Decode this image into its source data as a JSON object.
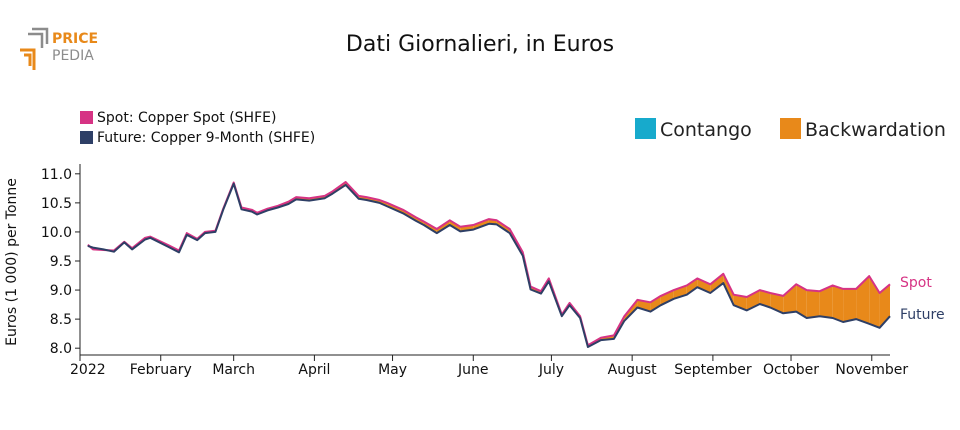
{
  "logo": {
    "line1": "PRICE",
    "line2": "PEDIA",
    "color_orange": "#e8891a",
    "color_gray": "#8c8c8c"
  },
  "title": "Dati Giornalieri, in Euros",
  "legend": {
    "spot": {
      "label": "Spot: Copper Spot (SHFE)",
      "color": "#d63384"
    },
    "future": {
      "label": "Future: Copper 9-Month (SHFE)",
      "color": "#2e3f66"
    },
    "contango": {
      "label": "Contango",
      "color": "#17aacc"
    },
    "backwardation": {
      "label": "Backwardation",
      "color": "#e8891a"
    }
  },
  "chart_data": {
    "type": "area",
    "title": "Dati Giornalieri, in Euros",
    "ylabel": "Euros (1 000) per Tonne",
    "xlabel": "",
    "ylim": [
      7.9,
      11.1
    ],
    "yticks": [
      8.0,
      8.5,
      9.0,
      9.5,
      10.0,
      10.5,
      11.0
    ],
    "ytick_labels": [
      "8.0",
      "8.5",
      "9.0",
      "9.5",
      "10.0",
      "10.5",
      "11.0"
    ],
    "xlim": [
      "2022-01-01",
      "2022-11-08"
    ],
    "xticks": [
      {
        "date": "2022-01-01",
        "label": "2022"
      },
      {
        "date": "2022-02-01",
        "label": "February"
      },
      {
        "date": "2022-03-01",
        "label": "March"
      },
      {
        "date": "2022-04-01",
        "label": "April"
      },
      {
        "date": "2022-05-01",
        "label": "May"
      },
      {
        "date": "2022-06-01",
        "label": "June"
      },
      {
        "date": "2022-07-01",
        "label": "July"
      },
      {
        "date": "2022-08-01",
        "label": "August"
      },
      {
        "date": "2022-09-01",
        "label": "September"
      },
      {
        "date": "2022-10-01",
        "label": "October"
      },
      {
        "date": "2022-11-01",
        "label": "November"
      }
    ],
    "end_labels": {
      "spot": "Spot",
      "future": "Future"
    },
    "series": [
      {
        "name": "Spot",
        "x": [
          "2022-01-04",
          "2022-01-06",
          "2022-01-10",
          "2022-01-14",
          "2022-01-18",
          "2022-01-21",
          "2022-01-26",
          "2022-01-28",
          "2022-02-04",
          "2022-02-08",
          "2022-02-11",
          "2022-02-15",
          "2022-02-18",
          "2022-02-22",
          "2022-02-25",
          "2022-03-01",
          "2022-03-04",
          "2022-03-08",
          "2022-03-10",
          "2022-03-14",
          "2022-03-18",
          "2022-03-22",
          "2022-03-25",
          "2022-03-30",
          "2022-04-05",
          "2022-04-08",
          "2022-04-13",
          "2022-04-18",
          "2022-04-21",
          "2022-04-26",
          "2022-04-29",
          "2022-05-05",
          "2022-05-10",
          "2022-05-13",
          "2022-05-18",
          "2022-05-23",
          "2022-05-27",
          "2022-06-01",
          "2022-06-07",
          "2022-06-10",
          "2022-06-15",
          "2022-06-20",
          "2022-06-23",
          "2022-06-27",
          "2022-06-30",
          "2022-07-05",
          "2022-07-08",
          "2022-07-12",
          "2022-07-15",
          "2022-07-20",
          "2022-07-25",
          "2022-07-29",
          "2022-08-03",
          "2022-08-08",
          "2022-08-12",
          "2022-08-17",
          "2022-08-22",
          "2022-08-26",
          "2022-08-31",
          "2022-09-05",
          "2022-09-09",
          "2022-09-14",
          "2022-09-19",
          "2022-09-23",
          "2022-09-28",
          "2022-10-03",
          "2022-10-07",
          "2022-10-12",
          "2022-10-17",
          "2022-10-21",
          "2022-10-26",
          "2022-10-31",
          "2022-11-04",
          "2022-11-08"
        ],
        "values": [
          9.78,
          9.7,
          9.69,
          9.68,
          9.83,
          9.72,
          9.9,
          9.92,
          9.77,
          9.68,
          9.98,
          9.88,
          10.0,
          10.02,
          10.4,
          10.85,
          10.42,
          10.38,
          10.33,
          10.4,
          10.45,
          10.52,
          10.6,
          10.58,
          10.62,
          10.7,
          10.86,
          10.62,
          10.6,
          10.55,
          10.5,
          10.38,
          10.25,
          10.18,
          10.05,
          10.2,
          10.09,
          10.12,
          10.22,
          10.2,
          10.05,
          9.65,
          9.06,
          8.98,
          9.2,
          8.58,
          8.78,
          8.55,
          8.05,
          8.18,
          8.22,
          8.55,
          8.83,
          8.79,
          8.9,
          9.0,
          9.08,
          9.2,
          9.1,
          9.28,
          8.92,
          8.88,
          9.0,
          8.95,
          8.9,
          9.1,
          9.0,
          8.98,
          9.08,
          9.02,
          9.02,
          9.24,
          8.95,
          9.1
        ]
      },
      {
        "name": "Future",
        "x": [
          "2022-01-04",
          "2022-01-06",
          "2022-01-10",
          "2022-01-14",
          "2022-01-18",
          "2022-01-21",
          "2022-01-26",
          "2022-01-28",
          "2022-02-04",
          "2022-02-08",
          "2022-02-11",
          "2022-02-15",
          "2022-02-18",
          "2022-02-22",
          "2022-02-25",
          "2022-03-01",
          "2022-03-04",
          "2022-03-08",
          "2022-03-10",
          "2022-03-14",
          "2022-03-18",
          "2022-03-22",
          "2022-03-25",
          "2022-03-30",
          "2022-04-05",
          "2022-04-08",
          "2022-04-13",
          "2022-04-18",
          "2022-04-21",
          "2022-04-26",
          "2022-04-29",
          "2022-05-05",
          "2022-05-10",
          "2022-05-13",
          "2022-05-18",
          "2022-05-23",
          "2022-05-27",
          "2022-06-01",
          "2022-06-07",
          "2022-06-10",
          "2022-06-15",
          "2022-06-20",
          "2022-06-23",
          "2022-06-27",
          "2022-06-30",
          "2022-07-05",
          "2022-07-08",
          "2022-07-12",
          "2022-07-15",
          "2022-07-20",
          "2022-07-25",
          "2022-07-29",
          "2022-08-03",
          "2022-08-08",
          "2022-08-12",
          "2022-08-17",
          "2022-08-22",
          "2022-08-26",
          "2022-08-31",
          "2022-09-05",
          "2022-09-09",
          "2022-09-14",
          "2022-09-19",
          "2022-09-23",
          "2022-09-28",
          "2022-10-03",
          "2022-10-07",
          "2022-10-12",
          "2022-10-17",
          "2022-10-21",
          "2022-10-26",
          "2022-10-31",
          "2022-11-04",
          "2022-11-08"
        ],
        "values": [
          9.76,
          9.73,
          9.7,
          9.66,
          9.82,
          9.7,
          9.87,
          9.9,
          9.74,
          9.65,
          9.95,
          9.86,
          9.98,
          10.0,
          10.38,
          10.83,
          10.39,
          10.35,
          10.3,
          10.37,
          10.42,
          10.48,
          10.56,
          10.54,
          10.58,
          10.66,
          10.81,
          10.57,
          10.55,
          10.5,
          10.44,
          10.32,
          10.19,
          10.12,
          9.98,
          10.12,
          10.01,
          10.04,
          10.14,
          10.13,
          9.98,
          9.59,
          9.01,
          8.94,
          9.15,
          8.55,
          8.74,
          8.52,
          8.02,
          8.14,
          8.16,
          8.47,
          8.7,
          8.63,
          8.74,
          8.85,
          8.92,
          9.05,
          8.95,
          9.12,
          8.74,
          8.65,
          8.76,
          8.7,
          8.6,
          8.63,
          8.52,
          8.55,
          8.52,
          8.45,
          8.5,
          8.42,
          8.35,
          8.55
        ]
      }
    ]
  }
}
